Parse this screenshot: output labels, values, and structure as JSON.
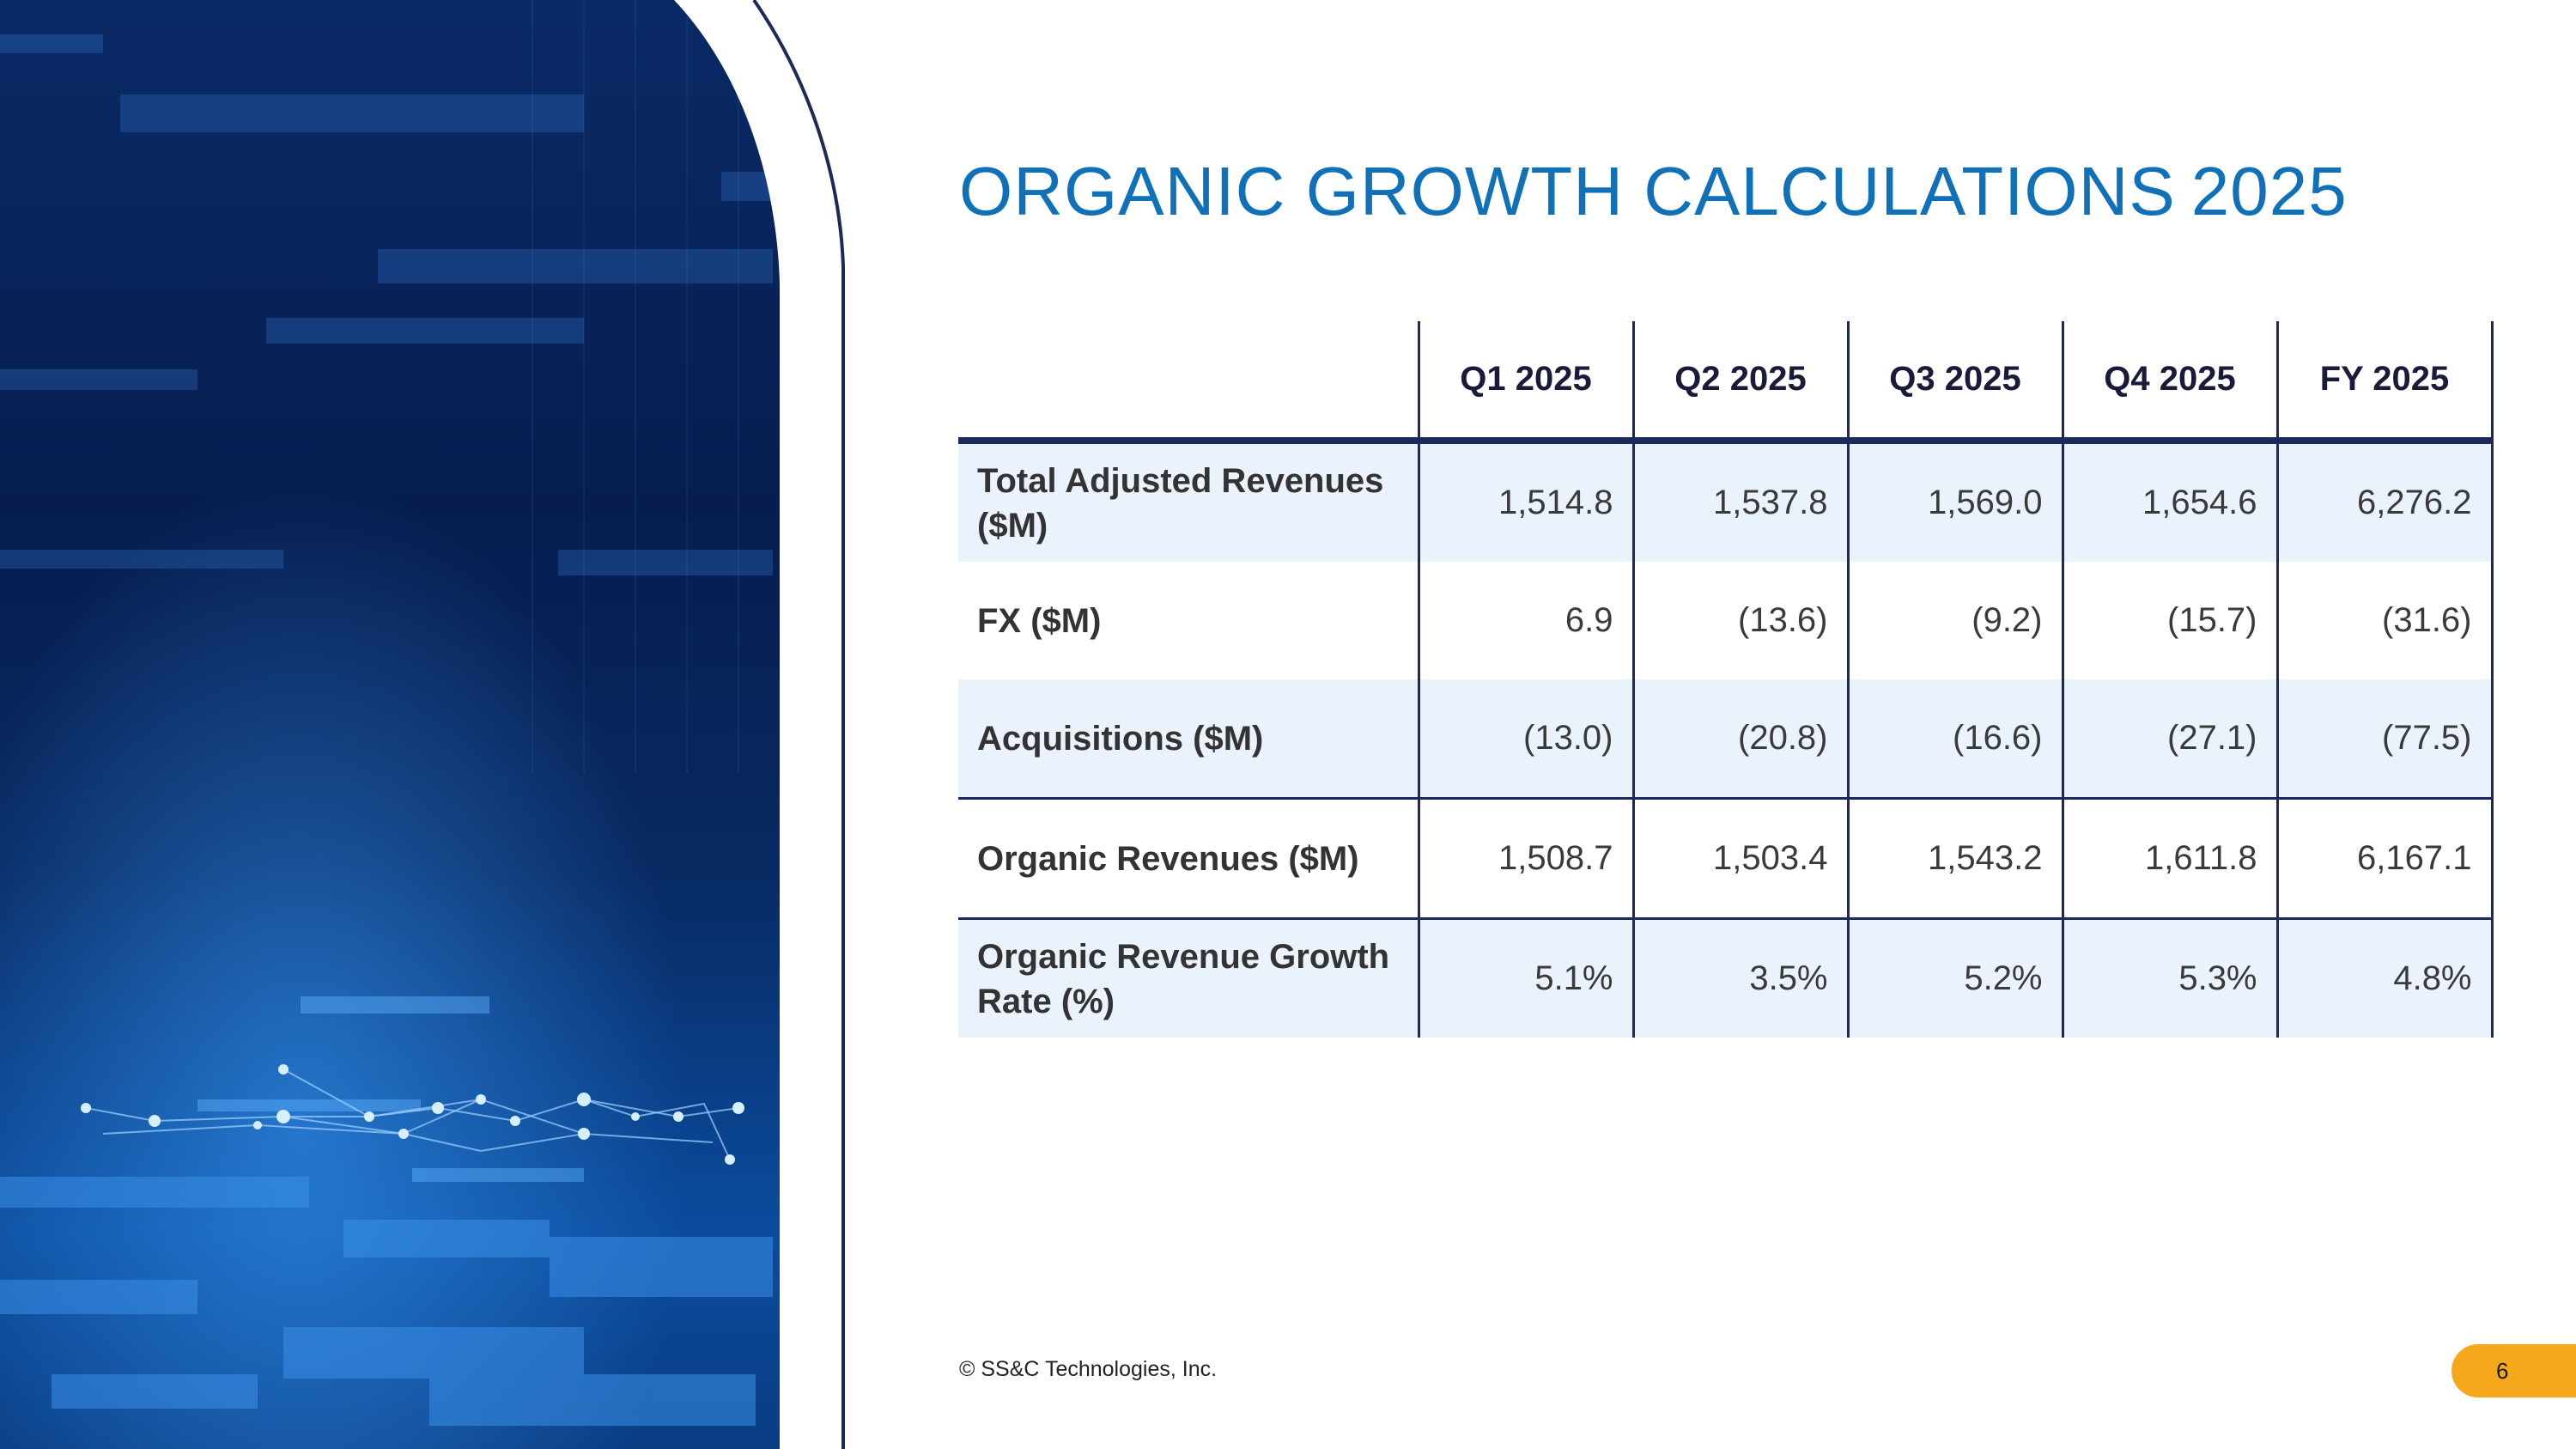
{
  "slide": {
    "title_main": "ORGANIC GROWTH CALCULATIONS",
    "title_year": "2025",
    "footer": "© SS&C Technologies, Inc.",
    "page_number": "6",
    "accent_color": "#1070b8",
    "badge_color": "#f5a81c",
    "rule_color": "#1c2a5a"
  },
  "table": {
    "headers": [
      "",
      "Q1 2025",
      "Q2 2025",
      "Q3 2025",
      "Q4 2025",
      "FY 2025"
    ],
    "rows": [
      {
        "label": "Total Adjusted Revenues ($M)",
        "values": [
          "1,514.8",
          "1,537.8",
          "1,569.0",
          "1,654.6",
          "6,276.2"
        ]
      },
      {
        "label": "FX ($M)",
        "values": [
          "6.9",
          "(13.6)",
          "(9.2)",
          "(15.7)",
          "(31.6)"
        ]
      },
      {
        "label": "Acquisitions ($M)",
        "values": [
          "(13.0)",
          "(20.8)",
          "(16.6)",
          "(27.1)",
          "(77.5)"
        ]
      },
      {
        "label": "Organic Revenues ($M)",
        "values": [
          "1,508.7",
          "1,503.4",
          "1,543.2",
          "1,611.8",
          "6,167.1"
        ]
      },
      {
        "label": "Organic Revenue Growth Rate (%)",
        "values": [
          "5.1%",
          "3.5%",
          "5.2%",
          "5.3%",
          "4.8%"
        ]
      }
    ]
  }
}
